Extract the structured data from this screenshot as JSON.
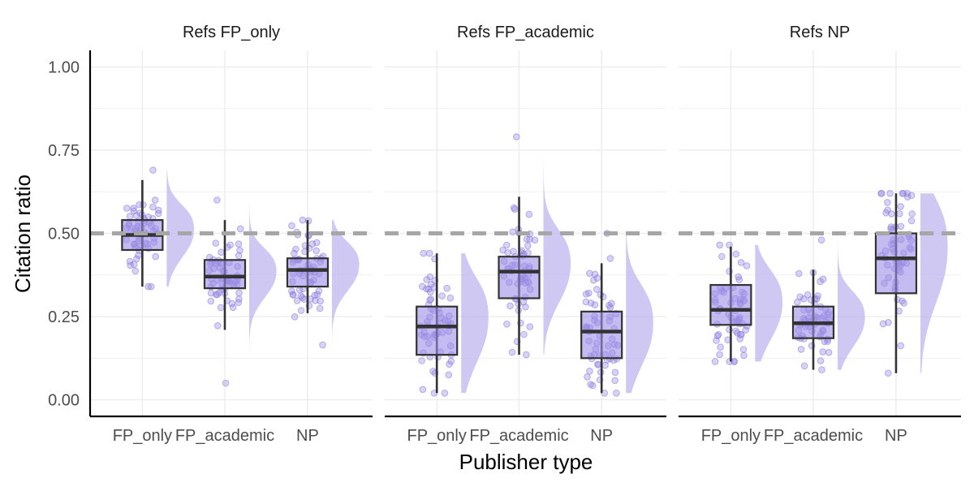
{
  "chart_data": {
    "type": "boxplot-raincloud",
    "xlabel": "Publisher type",
    "ylabel": "Citation ratio",
    "ylim": [
      -0.05,
      1.05
    ],
    "y_ticks": [
      "0.00",
      "0.25",
      "0.50",
      "0.75",
      "1.00"
    ],
    "y_tick_values": [
      0,
      0.25,
      0.5,
      0.75,
      1.0
    ],
    "reference_line": 0.5,
    "categories": [
      "FP_only",
      "FP_academic",
      "NP"
    ],
    "colors": {
      "fill": "#9c8ee6",
      "point": "#8f80e0",
      "density": "#b9b0ee",
      "box_line": "#333333",
      "ref_line": "#a6a6a6",
      "grid": "#ebebeb"
    },
    "grid": true,
    "panels": [
      {
        "title": "Refs FP_only",
        "boxes": [
          {
            "category": "FP_only",
            "whisker_low": 0.34,
            "q1": 0.45,
            "median": 0.495,
            "q3": 0.54,
            "whisker_high": 0.66,
            "points_min": 0.34,
            "points_max": 0.69
          },
          {
            "category": "FP_academic",
            "whisker_low": 0.21,
            "q1": 0.335,
            "median": 0.37,
            "q3": 0.42,
            "whisker_high": 0.54,
            "points_min": 0.05,
            "points_max": 0.6
          },
          {
            "category": "NP",
            "whisker_low": 0.26,
            "q1": 0.34,
            "median": 0.39,
            "q3": 0.425,
            "whisker_high": 0.54,
            "points_min": 0.165,
            "points_max": 0.54
          }
        ]
      },
      {
        "title": "Refs FP_academic",
        "boxes": [
          {
            "category": "FP_only",
            "whisker_low": 0.02,
            "q1": 0.135,
            "median": 0.22,
            "q3": 0.28,
            "whisker_high": 0.44,
            "points_min": 0.02,
            "points_max": 0.44
          },
          {
            "category": "FP_academic",
            "whisker_low": 0.135,
            "q1": 0.305,
            "median": 0.385,
            "q3": 0.43,
            "whisker_high": 0.61,
            "points_min": 0.135,
            "points_max": 0.79
          },
          {
            "category": "NP",
            "whisker_low": 0.02,
            "q1": 0.125,
            "median": 0.205,
            "q3": 0.265,
            "whisker_high": 0.41,
            "points_min": 0.02,
            "points_max": 0.5
          }
        ]
      },
      {
        "title": "Refs NP",
        "boxes": [
          {
            "category": "FP_only",
            "whisker_low": 0.115,
            "q1": 0.225,
            "median": 0.27,
            "q3": 0.345,
            "whisker_high": 0.46,
            "points_min": 0.115,
            "points_max": 0.465
          },
          {
            "category": "FP_academic",
            "whisker_low": 0.09,
            "q1": 0.185,
            "median": 0.23,
            "q3": 0.28,
            "whisker_high": 0.39,
            "points_min": 0.09,
            "points_max": 0.48
          },
          {
            "category": "NP",
            "whisker_low": 0.08,
            "q1": 0.32,
            "median": 0.425,
            "q3": 0.5,
            "whisker_high": 0.62,
            "points_min": 0.08,
            "points_max": 0.62
          }
        ]
      }
    ]
  }
}
